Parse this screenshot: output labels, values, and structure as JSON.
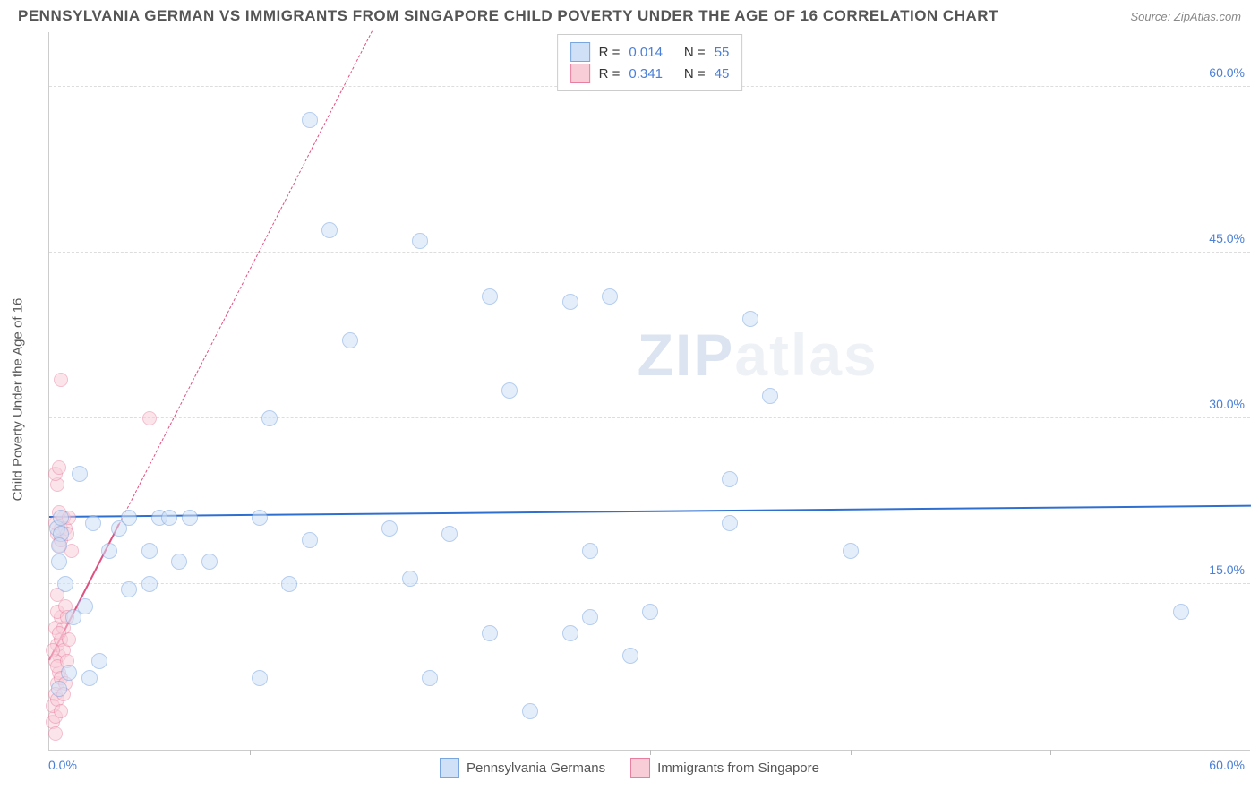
{
  "title": "PENNSYLVANIA GERMAN VS IMMIGRANTS FROM SINGAPORE CHILD POVERTY UNDER THE AGE OF 16 CORRELATION CHART",
  "source": "Source: ZipAtlas.com",
  "ylabel": "Child Poverty Under the Age of 16",
  "watermark_a": "ZIP",
  "watermark_b": "atlas",
  "chart": {
    "type": "scatter",
    "background_color": "#ffffff",
    "grid_color": "#dddddd",
    "axis_color": "#cccccc",
    "tick_color": "#4a7fd6",
    "xlim": [
      0,
      60
    ],
    "ylim": [
      0,
      65
    ],
    "yticks": [
      {
        "v": 15,
        "label": "15.0%"
      },
      {
        "v": 30,
        "label": "30.0%"
      },
      {
        "v": 45,
        "label": "45.0%"
      },
      {
        "v": 60,
        "label": "60.0%"
      }
    ],
    "x_min_label": "0.0%",
    "x_max_label": "60.0%",
    "x_minor_ticks": [
      10,
      20,
      30,
      40,
      50
    ],
    "series": [
      {
        "name": "Pennsylvania Germans",
        "fill": "#cfe0f7",
        "stroke": "#7aa6e0",
        "fill_opacity": 0.55,
        "marker_radius": 9,
        "R": "0.014",
        "N": "55",
        "trend": {
          "y_at_x0": 21.0,
          "y_at_xmax": 22.0,
          "color": "#2f6fd0",
          "style": "solid"
        },
        "points": [
          [
            0.4,
            20
          ],
          [
            0.6,
            19.5
          ],
          [
            0.6,
            21
          ],
          [
            1,
            7
          ],
          [
            0.5,
            17
          ],
          [
            0.5,
            18.5
          ],
          [
            1.2,
            12
          ],
          [
            1.5,
            25
          ],
          [
            2,
            6.5
          ],
          [
            2.5,
            8
          ],
          [
            1.8,
            13
          ],
          [
            2.2,
            20.5
          ],
          [
            3,
            18
          ],
          [
            3.5,
            20
          ],
          [
            4,
            14.5
          ],
          [
            4,
            21
          ],
          [
            5,
            15
          ],
          [
            5,
            18
          ],
          [
            5.5,
            21
          ],
          [
            6.5,
            17
          ],
          [
            6,
            21
          ],
          [
            7,
            21
          ],
          [
            8,
            17
          ],
          [
            10.5,
            21
          ],
          [
            10.5,
            6.5
          ],
          [
            11,
            30
          ],
          [
            12,
            15
          ],
          [
            13,
            19
          ],
          [
            13,
            57
          ],
          [
            14,
            47
          ],
          [
            15,
            37
          ],
          [
            17,
            20
          ],
          [
            18,
            15.5
          ],
          [
            18.5,
            46
          ],
          [
            19,
            6.5
          ],
          [
            20,
            19.5
          ],
          [
            22,
            41
          ],
          [
            22,
            10.5
          ],
          [
            23,
            32.5
          ],
          [
            24,
            3.5
          ],
          [
            26,
            10.5
          ],
          [
            26,
            40.5
          ],
          [
            27,
            18
          ],
          [
            27,
            12
          ],
          [
            28,
            41
          ],
          [
            29,
            8.5
          ],
          [
            30,
            12.5
          ],
          [
            34,
            24.5
          ],
          [
            34,
            20.5
          ],
          [
            35,
            39
          ],
          [
            36,
            32
          ],
          [
            40,
            18
          ],
          [
            56.5,
            12.5
          ],
          [
            0.5,
            5.5
          ],
          [
            0.8,
            15
          ]
        ]
      },
      {
        "name": "Immigrants from Singapore",
        "fill": "#f8cdd8",
        "stroke": "#e97fa0",
        "fill_opacity": 0.5,
        "marker_radius": 8,
        "R": "0.341",
        "N": "45",
        "trend": {
          "y_at_x0": 8.0,
          "y_at_xmax": 220.0,
          "color": "#e05080",
          "style": "solid_then_dashed",
          "x_solid_end": 3.5
        },
        "points": [
          [
            0.2,
            2.5
          ],
          [
            0.3,
            3
          ],
          [
            0.4,
            6
          ],
          [
            0.5,
            7
          ],
          [
            0.5,
            8.5
          ],
          [
            0.4,
            9.5
          ],
          [
            0.6,
            10
          ],
          [
            0.3,
            11
          ],
          [
            0.7,
            11
          ],
          [
            0.6,
            12
          ],
          [
            0.4,
            12.5
          ],
          [
            0.8,
            13
          ],
          [
            0.5,
            10.5
          ],
          [
            0.3,
            8
          ],
          [
            0.7,
            9
          ],
          [
            0.4,
            7.5
          ],
          [
            0.6,
            6.5
          ],
          [
            0.3,
            5
          ],
          [
            0.5,
            18.5
          ],
          [
            0.4,
            19.5
          ],
          [
            0.6,
            20
          ],
          [
            0.3,
            20.5
          ],
          [
            0.7,
            21
          ],
          [
            0.8,
            20
          ],
          [
            0.5,
            21.5
          ],
          [
            0.6,
            19
          ],
          [
            0.4,
            24
          ],
          [
            0.3,
            25
          ],
          [
            0.5,
            25.5
          ],
          [
            0.6,
            33.5
          ],
          [
            0.3,
            1.5
          ],
          [
            0.2,
            4
          ],
          [
            0.4,
            4.5
          ],
          [
            0.9,
            12
          ],
          [
            1.0,
            21
          ],
          [
            1.1,
            18
          ],
          [
            0.9,
            8
          ],
          [
            1.0,
            10
          ],
          [
            0.8,
            6
          ],
          [
            0.7,
            5
          ],
          [
            0.6,
            3.5
          ],
          [
            0.2,
            9
          ],
          [
            0.4,
            14
          ],
          [
            5,
            30
          ],
          [
            0.9,
            19.5
          ]
        ]
      }
    ]
  },
  "legend_top": {
    "rows": [
      {
        "swatch_idx": 0,
        "r_label": "R =",
        "n_label": "N ="
      },
      {
        "swatch_idx": 1,
        "r_label": "R =",
        "n_label": "N ="
      }
    ]
  }
}
